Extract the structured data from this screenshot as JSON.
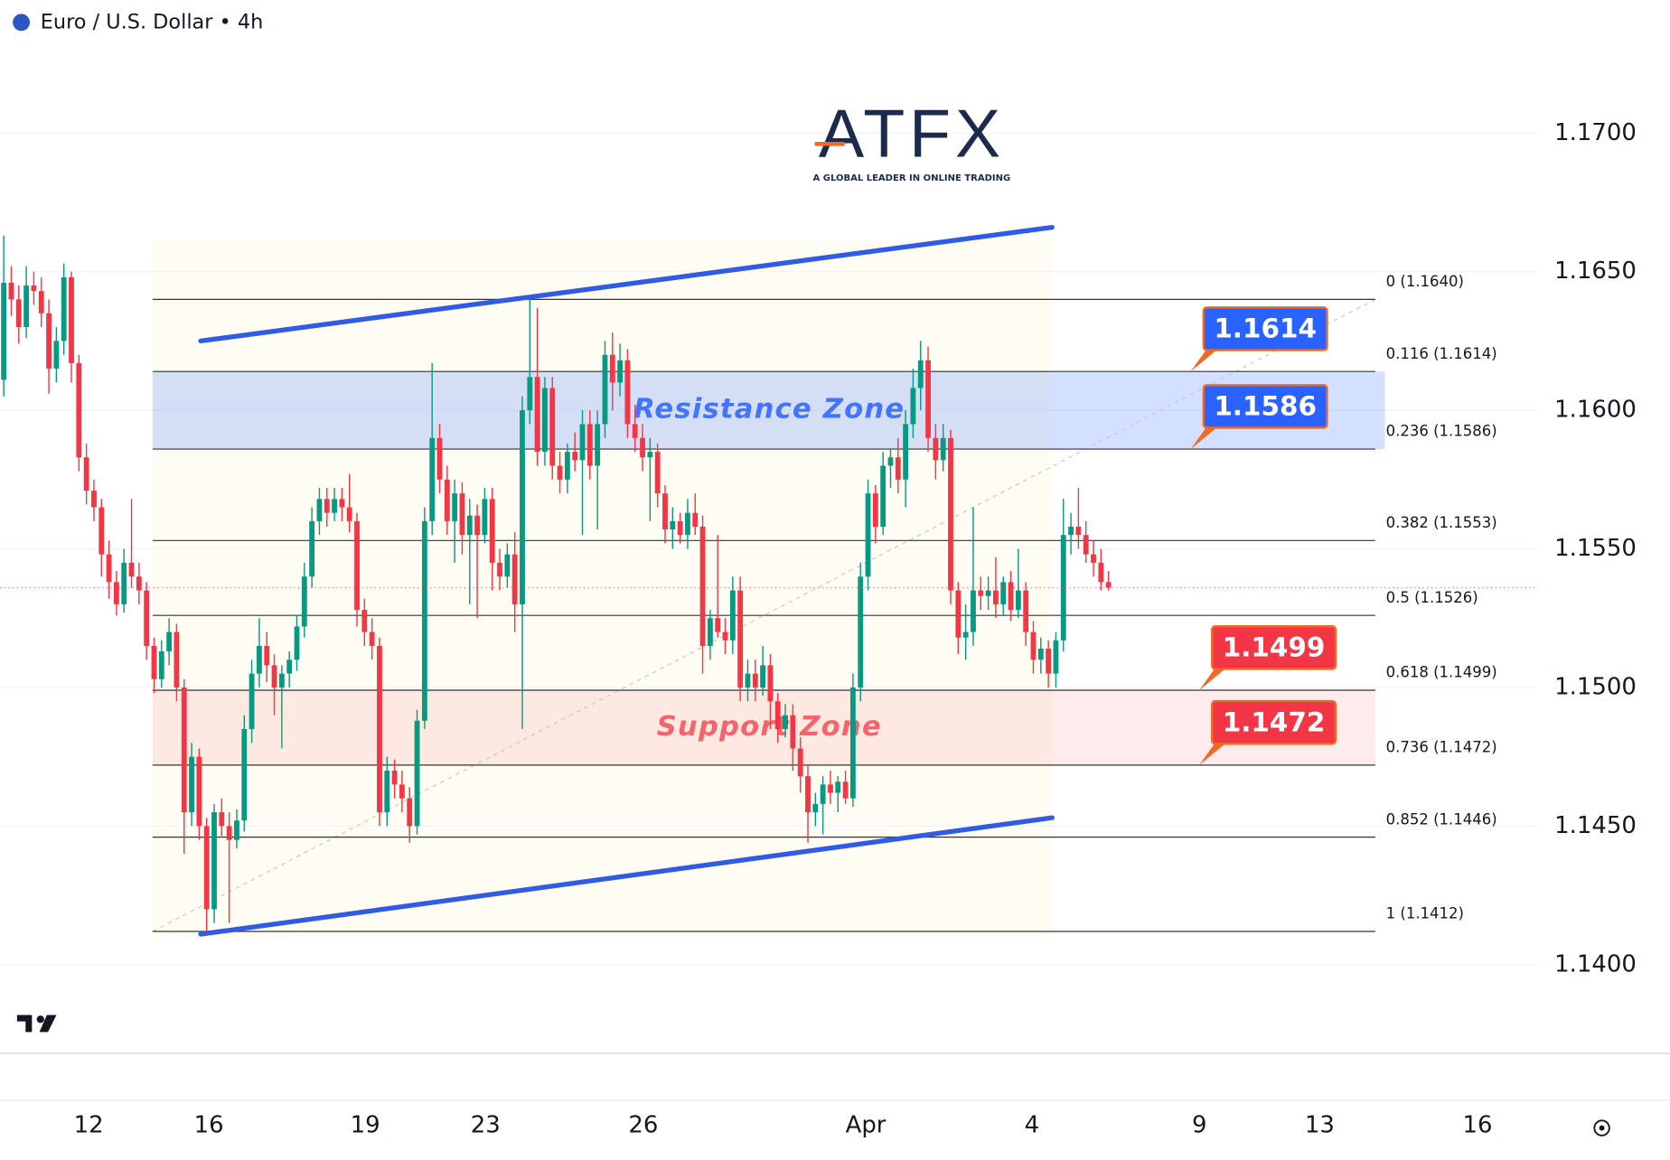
{
  "header": {
    "title": "Euro / U.S. Dollar • 4h"
  },
  "logo": {
    "name": "ATFX",
    "tagline": "A GLOBAL LEADER IN ONLINE TRADING"
  },
  "chart_data": {
    "type": "candlestick",
    "up_color": "#089981",
    "down_color": "#f23645",
    "candles": [
      [
        1.1611,
        1.1663,
        1.1605,
        1.1646
      ],
      [
        1.1646,
        1.1652,
        1.1634,
        1.164
      ],
      [
        1.164,
        1.1645,
        1.1624,
        1.163
      ],
      [
        1.163,
        1.1652,
        1.1626,
        1.1645
      ],
      [
        1.1645,
        1.165,
        1.1638,
        1.1643
      ],
      [
        1.1643,
        1.1648,
        1.163,
        1.1635
      ],
      [
        1.1635,
        1.164,
        1.1606,
        1.1615
      ],
      [
        1.1615,
        1.163,
        1.161,
        1.1625
      ],
      [
        1.1625,
        1.1653,
        1.162,
        1.1648
      ],
      [
        1.1648,
        1.165,
        1.161,
        1.1617
      ],
      [
        1.1617,
        1.162,
        1.1578,
        1.1583
      ],
      [
        1.1583,
        1.1588,
        1.1566,
        1.1571
      ],
      [
        1.1571,
        1.1575,
        1.156,
        1.1565
      ],
      [
        1.1565,
        1.1568,
        1.154,
        1.1548
      ],
      [
        1.1548,
        1.1553,
        1.1532,
        1.1538
      ],
      [
        1.1538,
        1.1542,
        1.1526,
        1.153
      ],
      [
        1.153,
        1.155,
        1.1527,
        1.1545
      ],
      [
        1.1545,
        1.1568,
        1.1536,
        1.154
      ],
      [
        1.154,
        1.1545,
        1.153,
        1.1535
      ],
      [
        1.1535,
        1.1538,
        1.151,
        1.1515
      ],
      [
        1.1515,
        1.1518,
        1.1498,
        1.1503
      ],
      [
        1.1503,
        1.1517,
        1.15,
        1.1513
      ],
      [
        1.1513,
        1.1525,
        1.1508,
        1.152
      ],
      [
        1.152,
        1.1523,
        1.1495,
        1.15
      ],
      [
        1.15,
        1.1503,
        1.144,
        1.1455
      ],
      [
        1.1455,
        1.148,
        1.145,
        1.1475
      ],
      [
        1.1475,
        1.1478,
        1.1445,
        1.145
      ],
      [
        1.145,
        1.1453,
        1.1412,
        1.142
      ],
      [
        1.142,
        1.1458,
        1.1415,
        1.1455
      ],
      [
        1.1455,
        1.146,
        1.1446,
        1.145
      ],
      [
        1.145,
        1.1455,
        1.1415,
        1.1445
      ],
      [
        1.1445,
        1.1456,
        1.1442,
        1.1452
      ],
      [
        1.1452,
        1.149,
        1.1448,
        1.1485
      ],
      [
        1.1485,
        1.151,
        1.148,
        1.1505
      ],
      [
        1.1505,
        1.1525,
        1.15,
        1.1515
      ],
      [
        1.1515,
        1.152,
        1.1502,
        1.1508
      ],
      [
        1.1508,
        1.1512,
        1.149,
        1.15
      ],
      [
        1.15,
        1.1508,
        1.1478,
        1.1505
      ],
      [
        1.1505,
        1.1513,
        1.15,
        1.151
      ],
      [
        1.151,
        1.1526,
        1.1506,
        1.1522
      ],
      [
        1.1522,
        1.1545,
        1.1518,
        1.154
      ],
      [
        1.154,
        1.1565,
        1.1536,
        1.156
      ],
      [
        1.156,
        1.1572,
        1.1555,
        1.1568
      ],
      [
        1.1568,
        1.1572,
        1.1558,
        1.1563
      ],
      [
        1.1563,
        1.1572,
        1.156,
        1.1568
      ],
      [
        1.1568,
        1.1572,
        1.156,
        1.1565
      ],
      [
        1.1565,
        1.1577,
        1.1556,
        1.156
      ],
      [
        1.156,
        1.1563,
        1.1522,
        1.1528
      ],
      [
        1.1528,
        1.1532,
        1.1515,
        1.152
      ],
      [
        1.152,
        1.1525,
        1.151,
        1.1515
      ],
      [
        1.1515,
        1.1518,
        1.145,
        1.1455
      ],
      [
        1.1455,
        1.1475,
        1.145,
        1.147
      ],
      [
        1.147,
        1.1474,
        1.146,
        1.1465
      ],
      [
        1.1465,
        1.147,
        1.1455,
        1.146
      ],
      [
        1.146,
        1.1464,
        1.1444,
        1.145
      ],
      [
        1.145,
        1.1492,
        1.1447,
        1.1488
      ],
      [
        1.1488,
        1.1565,
        1.1485,
        1.156
      ],
      [
        1.156,
        1.1617,
        1.1555,
        1.159
      ],
      [
        1.159,
        1.1595,
        1.157,
        1.1575
      ],
      [
        1.1575,
        1.158,
        1.1555,
        1.156
      ],
      [
        1.156,
        1.1575,
        1.1545,
        1.157
      ],
      [
        1.157,
        1.1574,
        1.1548,
        1.1555
      ],
      [
        1.1555,
        1.1568,
        1.153,
        1.1562
      ],
      [
        1.1562,
        1.1566,
        1.1525,
        1.1555
      ],
      [
        1.1555,
        1.1572,
        1.1552,
        1.1568
      ],
      [
        1.1568,
        1.1572,
        1.1535,
        1.1545
      ],
      [
        1.1545,
        1.155,
        1.1535,
        1.154
      ],
      [
        1.154,
        1.1552,
        1.1536,
        1.1548
      ],
      [
        1.1548,
        1.1556,
        1.152,
        1.153
      ],
      [
        1.153,
        1.1605,
        1.1485,
        1.16
      ],
      [
        1.16,
        1.164,
        1.1595,
        1.1612
      ],
      [
        1.1612,
        1.1637,
        1.158,
        1.1585
      ],
      [
        1.1585,
        1.1612,
        1.158,
        1.1608
      ],
      [
        1.1608,
        1.1612,
        1.1575,
        1.158
      ],
      [
        1.158,
        1.1585,
        1.157,
        1.1575
      ],
      [
        1.1575,
        1.1588,
        1.157,
        1.1585
      ],
      [
        1.1585,
        1.1592,
        1.1578,
        1.1582
      ],
      [
        1.1582,
        1.16,
        1.1555,
        1.1595
      ],
      [
        1.1595,
        1.16,
        1.1575,
        1.158
      ],
      [
        1.158,
        1.16,
        1.1557,
        1.1595
      ],
      [
        1.1595,
        1.1625,
        1.159,
        1.162
      ],
      [
        1.162,
        1.1628,
        1.16,
        1.161
      ],
      [
        1.161,
        1.1624,
        1.1605,
        1.1618
      ],
      [
        1.1618,
        1.1622,
        1.159,
        1.1595
      ],
      [
        1.1595,
        1.1602,
        1.1585,
        1.159
      ],
      [
        1.159,
        1.1595,
        1.1578,
        1.1583
      ],
      [
        1.1583,
        1.159,
        1.156,
        1.1585
      ],
      [
        1.1585,
        1.1588,
        1.1565,
        1.157
      ],
      [
        1.157,
        1.1573,
        1.1552,
        1.1557
      ],
      [
        1.1557,
        1.1565,
        1.155,
        1.156
      ],
      [
        1.156,
        1.1563,
        1.1552,
        1.1555
      ],
      [
        1.1555,
        1.1568,
        1.155,
        1.1563
      ],
      [
        1.1563,
        1.157,
        1.1555,
        1.1558
      ],
      [
        1.1558,
        1.1562,
        1.1505,
        1.1515
      ],
      [
        1.1515,
        1.1528,
        1.151,
        1.1525
      ],
      [
        1.1525,
        1.1555,
        1.1518,
        1.152
      ],
      [
        1.152,
        1.1525,
        1.1512,
        1.1517
      ],
      [
        1.1517,
        1.154,
        1.1512,
        1.1535
      ],
      [
        1.1535,
        1.154,
        1.1495,
        1.15
      ],
      [
        1.15,
        1.151,
        1.1495,
        1.1505
      ],
      [
        1.1505,
        1.151,
        1.1495,
        1.15
      ],
      [
        1.15,
        1.1515,
        1.1497,
        1.1508
      ],
      [
        1.1508,
        1.1512,
        1.1485,
        1.1495
      ],
      [
        1.1495,
        1.1498,
        1.148,
        1.1485
      ],
      [
        1.1485,
        1.1494,
        1.1482,
        1.149
      ],
      [
        1.149,
        1.1494,
        1.147,
        1.1478
      ],
      [
        1.1478,
        1.1482,
        1.1462,
        1.1468
      ],
      [
        1.1468,
        1.1472,
        1.1444,
        1.1455
      ],
      [
        1.1455,
        1.1462,
        1.145,
        1.1458
      ],
      [
        1.1458,
        1.1468,
        1.1447,
        1.1465
      ],
      [
        1.1465,
        1.147,
        1.1458,
        1.1462
      ],
      [
        1.1462,
        1.1468,
        1.1455,
        1.1466
      ],
      [
        1.1466,
        1.147,
        1.1458,
        1.146
      ],
      [
        1.146,
        1.1505,
        1.1457,
        1.15
      ],
      [
        1.15,
        1.1545,
        1.1495,
        1.154
      ],
      [
        1.154,
        1.1575,
        1.1535,
        1.157
      ],
      [
        1.157,
        1.1573,
        1.1552,
        1.1558
      ],
      [
        1.1558,
        1.1585,
        1.1555,
        1.158
      ],
      [
        1.158,
        1.1586,
        1.1572,
        1.1583
      ],
      [
        1.1583,
        1.159,
        1.157,
        1.1575
      ],
      [
        1.1575,
        1.16,
        1.1565,
        1.1595
      ],
      [
        1.1595,
        1.1615,
        1.159,
        1.1608
      ],
      [
        1.1608,
        1.1625,
        1.16,
        1.1618
      ],
      [
        1.1618,
        1.1623,
        1.1585,
        1.159
      ],
      [
        1.159,
        1.1595,
        1.1575,
        1.1582
      ],
      [
        1.1582,
        1.1595,
        1.1578,
        1.159
      ],
      [
        1.159,
        1.1593,
        1.153,
        1.1535
      ],
      [
        1.1535,
        1.1538,
        1.1512,
        1.1518
      ],
      [
        1.1518,
        1.153,
        1.151,
        1.152
      ],
      [
        1.152,
        1.1565,
        1.1515,
        1.1535
      ],
      [
        1.1535,
        1.154,
        1.1528,
        1.1533
      ],
      [
        1.1533,
        1.154,
        1.1528,
        1.1535
      ],
      [
        1.1535,
        1.1547,
        1.1525,
        1.153
      ],
      [
        1.153,
        1.154,
        1.1526,
        1.1538
      ],
      [
        1.1538,
        1.1542,
        1.1524,
        1.1528
      ],
      [
        1.1528,
        1.155,
        1.1525,
        1.1535
      ],
      [
        1.1535,
        1.1538,
        1.1515,
        1.152
      ],
      [
        1.152,
        1.1524,
        1.1505,
        1.151
      ],
      [
        1.151,
        1.1518,
        1.1505,
        1.1514
      ],
      [
        1.1514,
        1.1517,
        1.15,
        1.1505
      ],
      [
        1.1505,
        1.152,
        1.15,
        1.1517
      ],
      [
        1.1517,
        1.1568,
        1.1513,
        1.1555
      ],
      [
        1.1555,
        1.1563,
        1.1548,
        1.1558
      ],
      [
        1.1558,
        1.1572,
        1.155,
        1.1555
      ],
      [
        1.1555,
        1.156,
        1.1545,
        1.1548
      ],
      [
        1.1548,
        1.1553,
        1.154,
        1.1545
      ],
      [
        1.1545,
        1.155,
        1.1535,
        1.1538
      ],
      [
        1.1538,
        1.1542,
        1.1535,
        1.1536
      ]
    ],
    "xlim": [
      -0.5,
      204
    ],
    "xticks": [
      {
        "value": 11.3,
        "label": "12"
      },
      {
        "value": 27.3,
        "label": "16"
      },
      {
        "value": 48.1,
        "label": "19"
      },
      {
        "value": 64.1,
        "label": "23"
      },
      {
        "value": 85.1,
        "label": "26"
      },
      {
        "value": 114.7,
        "label": "Apr"
      },
      {
        "value": 136.8,
        "label": "4"
      },
      {
        "value": 159.1,
        "label": "9"
      },
      {
        "value": 175.1,
        "label": "13"
      },
      {
        "value": 196.1,
        "label": "16"
      }
    ],
    "ylim": [
      1.1368,
      1.1748
    ],
    "yticks": [
      {
        "value": 1.14,
        "label": "1.1400"
      },
      {
        "value": 1.145,
        "label": "1.1450"
      },
      {
        "value": 1.15,
        "label": "1.1500"
      },
      {
        "value": 1.155,
        "label": "1.1550"
      },
      {
        "value": 1.16,
        "label": "1.1600"
      },
      {
        "value": 1.165,
        "label": "1.1650"
      },
      {
        "value": 1.17,
        "label": "1.1700"
      }
    ],
    "grid": true,
    "fib_x": [
      19.8,
      182.5
    ],
    "fib_levels": [
      {
        "value": 1.164,
        "label": "0 (1.1640)"
      },
      {
        "value": 1.1614,
        "label": "0.116 (1.1614)"
      },
      {
        "value": 1.1586,
        "label": "0.236 (1.1586)"
      },
      {
        "value": 1.1553,
        "label": "0.382 (1.1553)"
      },
      {
        "value": 1.1526,
        "label": "0.5 (1.1526)"
      },
      {
        "value": 1.1499,
        "label": "0.618 (1.1499)"
      },
      {
        "value": 1.1472,
        "label": "0.736 (1.1472)"
      },
      {
        "value": 1.1446,
        "label": "0.852 (1.1446)"
      },
      {
        "value": 1.1412,
        "label": "1 (1.1412)"
      }
    ],
    "zones": [
      {
        "name": "Resistance Zone",
        "from": 1.1586,
        "to": 1.1614,
        "color": "#2962ff"
      },
      {
        "name": "Support Zone",
        "from": 1.1472,
        "to": 1.1499,
        "color": "#f23645"
      }
    ],
    "price_labels": [
      {
        "value": 1.1614,
        "color": "#2962ff"
      },
      {
        "value": 1.1586,
        "color": "#2962ff"
      },
      {
        "value": 1.1499,
        "color": "#f23645"
      },
      {
        "value": 1.1472,
        "color": "#f23645"
      }
    ],
    "trendlines": [
      {
        "x": [
          26.2,
          139.5
        ],
        "y": [
          1.1625,
          1.1666
        ],
        "color": "#2f5be6"
      },
      {
        "x": [
          26.2,
          139.5
        ],
        "y": [
          1.1411,
          1.1453
        ],
        "color": "#2f5be6"
      }
    ],
    "fib_diagonal": {
      "x": [
        19.8,
        182.5
      ],
      "y": [
        1.1412,
        1.164
      ]
    }
  }
}
